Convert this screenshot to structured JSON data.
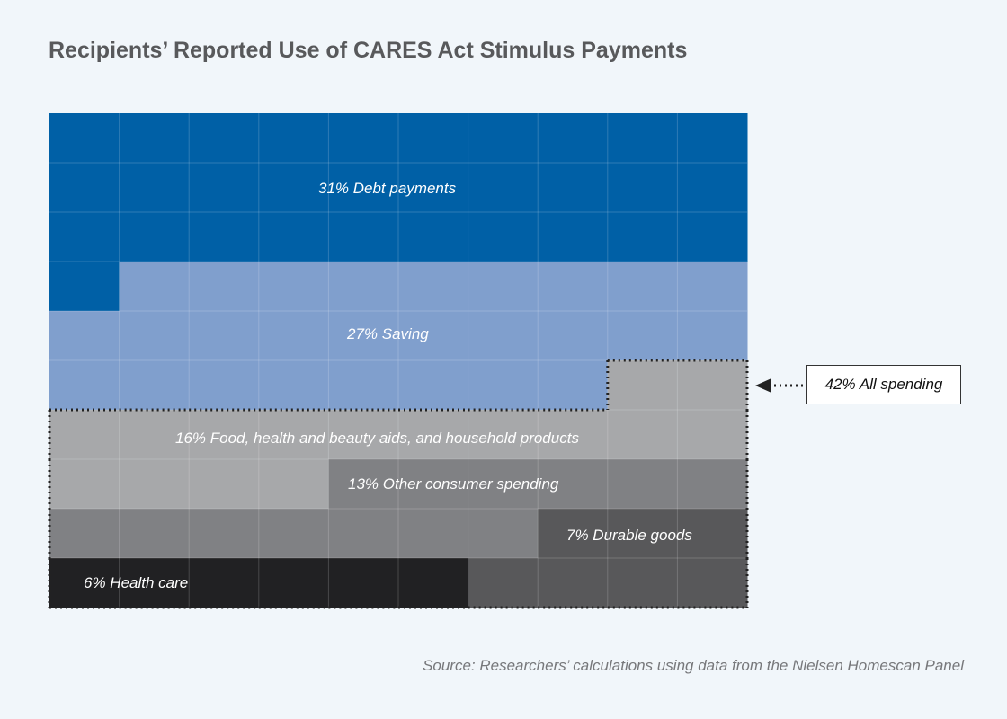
{
  "chart_data": {
    "type": "waffle",
    "title": "Recipients’ Reported Use of CARES Act Stimulus Payments",
    "grid": [
      10,
      10
    ],
    "categories": [
      {
        "name": "Debt payments",
        "value": 31,
        "label": "31%  Debt payments",
        "color": "#0060a6"
      },
      {
        "name": "Saving",
        "value": 27,
        "label": "27%  Saving",
        "color": "#809fcd"
      },
      {
        "name": "Food, health and beauty aids, and household products",
        "value": 16,
        "label": "16%  Food, health and beauty aids, and household products",
        "color": "#a7a8aa"
      },
      {
        "name": "Other consumer spending",
        "value": 13,
        "label": "13%  Other consumer spending",
        "color": "#808184"
      },
      {
        "name": "Durable goods",
        "value": 7,
        "label": "7%  Durable goods",
        "color": "#58585a"
      },
      {
        "name": "Health care",
        "value": 6,
        "label": "6%  Health care",
        "color": "#212123"
      }
    ],
    "annotation": {
      "label": "42%  All spending",
      "value": 42
    },
    "source": "Source: Researchers’ calculations using data from the Nielsen Homescan Panel"
  }
}
